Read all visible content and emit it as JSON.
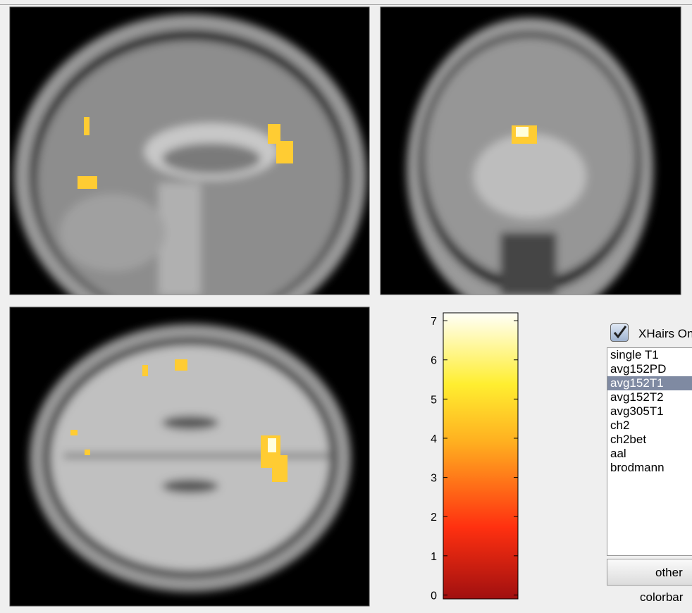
{
  "colorbar": {
    "ylim": [
      -0.1,
      7.2
    ],
    "yticks": [
      0,
      1,
      2,
      3,
      4,
      5,
      6,
      7
    ]
  },
  "controls": {
    "checkbox_label": "XHairs On",
    "checked": true,
    "template_list": [
      "single T1",
      "avg152PD",
      "avg152T1",
      "avg152T2",
      "avg305T1",
      "ch2",
      "ch2bet",
      "aal",
      "brodmann"
    ],
    "selected_index": 2,
    "button_label": "other",
    "button_caption": "colorbar"
  }
}
